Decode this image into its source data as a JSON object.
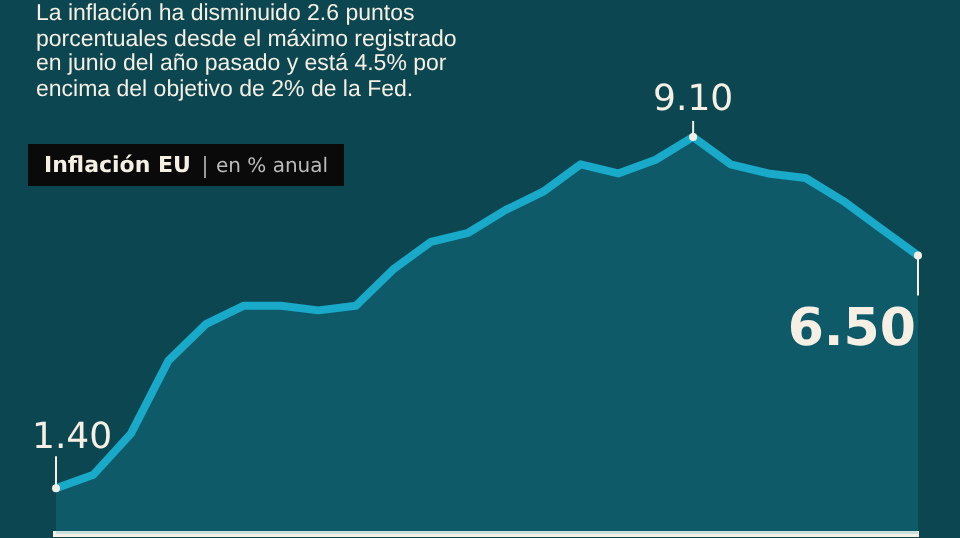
{
  "chart_data": {
    "type": "area",
    "title": "Inflación EU",
    "subtitle": "en % anual",
    "annotations": [
      "La inflación ha disminuido 2.6 puntos porcentuales desde el máximo registrado en junio del año pasado y está 4.5% por encima del objetivo de 2% de la Fed."
    ],
    "categories": [
      null,
      null,
      null,
      null,
      null,
      null,
      null,
      null,
      null,
      null,
      null,
      null,
      null,
      null,
      null,
      null,
      null,
      null,
      null,
      null,
      null,
      null,
      null,
      null
    ],
    "series": [
      {
        "color": "#19a9c9",
        "values": [
          1.4,
          1.7,
          2.6,
          4.2,
          5.0,
          5.4,
          5.4,
          5.3,
          5.4,
          6.2,
          6.8,
          7.0,
          7.5,
          7.9,
          8.5,
          8.3,
          8.6,
          9.1,
          8.5,
          8.3,
          8.2,
          7.7,
          7.1,
          6.5
        ],
        "value_labels": [
          "1.40",
          null,
          null,
          null,
          null,
          null,
          null,
          null,
          null,
          null,
          null,
          null,
          null,
          null,
          null,
          null,
          null,
          "9.10",
          null,
          null,
          null,
          null,
          null,
          "6.50"
        ]
      }
    ],
    "ylim": [
      0.4,
      12.1
    ],
    "grid": false,
    "legend": false,
    "marker": "none"
  }
}
